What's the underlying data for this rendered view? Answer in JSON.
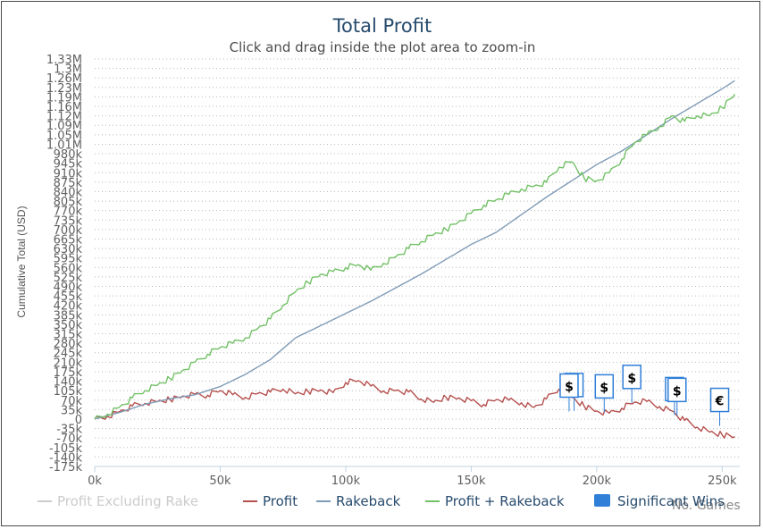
{
  "chart_data": {
    "type": "line",
    "title": "Total Profit",
    "subtitle": "Click and drag inside the plot area to zoom-in",
    "ylabel": "Cumulative Total (USD)",
    "xlabel": "No. Games",
    "xlim": [
      0,
      257000
    ],
    "ylim": [
      -175000,
      1330000
    ],
    "grid": "horizontal dotted",
    "legend_placement": "bottom",
    "x_ticks": [
      "0k",
      "50k",
      "100k",
      "150k",
      "200k",
      "250k"
    ],
    "y_ticks": [
      "1.33M",
      "1.3M",
      "1.26M",
      "1.23M",
      "1.19M",
      "1.16M",
      "1.12M",
      "1.09M",
      "1.05M",
      "1.01M",
      "980k",
      "945k",
      "910k",
      "875k",
      "840k",
      "805k",
      "770k",
      "735k",
      "700k",
      "665k",
      "630k",
      "595k",
      "560k",
      "525k",
      "490k",
      "455k",
      "420k",
      "385k",
      "350k",
      "315k",
      "280k",
      "245k",
      "210k",
      "175k",
      "140k",
      "105k",
      "70k",
      "35k",
      "0",
      "-35k",
      "-70k",
      "-105k",
      "-140k",
      "-175k"
    ],
    "series": [
      {
        "name": "Profit Excluding Rake",
        "color": "#c8c8c8",
        "visible": false,
        "x": [],
        "y": []
      },
      {
        "name": "Profit",
        "color": "#b5504e",
        "x": [
          0,
          5000,
          10000,
          15000,
          20000,
          25000,
          30000,
          35000,
          40000,
          45000,
          50000,
          55000,
          60000,
          65000,
          70000,
          75000,
          80000,
          85000,
          90000,
          95000,
          100000,
          105000,
          110000,
          115000,
          120000,
          125000,
          130000,
          135000,
          140000,
          145000,
          150000,
          155000,
          160000,
          165000,
          170000,
          175000,
          180000,
          185000,
          190000,
          195000,
          200000,
          205000,
          210000,
          215000,
          220000,
          225000,
          230000,
          235000,
          240000,
          245000,
          250000,
          255000
        ],
        "y": [
          0,
          10000,
          28000,
          48000,
          58000,
          64000,
          72000,
          85000,
          92000,
          88000,
          105000,
          90000,
          80000,
          95000,
          100000,
          110000,
          93000,
          102000,
          108000,
          98000,
          135000,
          142000,
          122000,
          104000,
          106000,
          100000,
          74000,
          62000,
          80000,
          78000,
          68000,
          54000,
          72000,
          70000,
          60000,
          43000,
          75000,
          110000,
          80000,
          48000,
          30000,
          22000,
          40000,
          62000,
          65000,
          46000,
          30000,
          -5000,
          -30000,
          -48000,
          -58000,
          -65000
        ]
      },
      {
        "name": "Rakeback",
        "color": "#7f9bb6",
        "x": [
          0,
          10000,
          20000,
          30000,
          40000,
          50000,
          60000,
          70000,
          80000,
          90000,
          100000,
          110000,
          120000,
          130000,
          140000,
          150000,
          160000,
          170000,
          180000,
          190000,
          200000,
          210000,
          220000,
          230000,
          240000,
          250000,
          255000
        ],
        "y": [
          0,
          25000,
          55000,
          75000,
          90000,
          120000,
          165000,
          220000,
          300000,
          345000,
          390000,
          435000,
          485000,
          535000,
          590000,
          645000,
          690000,
          755000,
          820000,
          880000,
          940000,
          990000,
          1050000,
          1110000,
          1165000,
          1220000,
          1250000
        ]
      },
      {
        "name": "Profit + Rakeback",
        "color": "#72c166",
        "x": [
          0,
          5000,
          10000,
          15000,
          20000,
          25000,
          30000,
          35000,
          40000,
          45000,
          50000,
          55000,
          60000,
          65000,
          70000,
          75000,
          80000,
          85000,
          90000,
          95000,
          100000,
          105000,
          110000,
          115000,
          120000,
          125000,
          130000,
          135000,
          140000,
          145000,
          150000,
          155000,
          160000,
          165000,
          170000,
          175000,
          180000,
          185000,
          190000,
          195000,
          200000,
          205000,
          210000,
          215000,
          220000,
          225000,
          230000,
          235000,
          240000,
          245000,
          250000,
          255000
        ],
        "y": [
          0,
          18000,
          45000,
          78000,
          105000,
          125000,
          150000,
          180000,
          210000,
          240000,
          265000,
          280000,
          300000,
          335000,
          370000,
          420000,
          470000,
          505000,
          535000,
          545000,
          560000,
          570000,
          550000,
          575000,
          600000,
          630000,
          655000,
          680000,
          700000,
          730000,
          760000,
          790000,
          810000,
          830000,
          850000,
          860000,
          875000,
          930000,
          950000,
          890000,
          880000,
          910000,
          960000,
          1020000,
          1050000,
          1080000,
          1120000,
          1100000,
          1120000,
          1120000,
          1150000,
          1200000
        ]
      }
    ],
    "significant_wins": {
      "name": "Significant Wins",
      "color": "#2f7ed8",
      "flags": [
        {
          "label": "$",
          "x": 191000,
          "y": 30000
        },
        {
          "label": "$",
          "x": 189000,
          "y": 28000
        },
        {
          "label": "$",
          "x": 203000,
          "y": 25000
        },
        {
          "label": "$",
          "x": 214000,
          "y": 60000
        },
        {
          "label": "$",
          "x": 231000,
          "y": 15000
        },
        {
          "label": "$",
          "x": 232000,
          "y": 12000
        },
        {
          "label": "€",
          "x": 249000,
          "y": -25000
        }
      ]
    }
  }
}
